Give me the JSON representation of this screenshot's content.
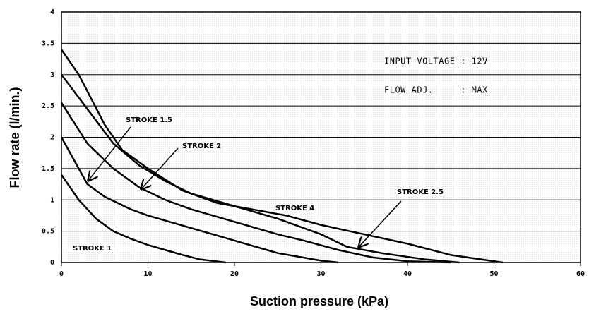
{
  "chart_data": {
    "type": "line",
    "xlabel": "Suction pressure (kPa)",
    "ylabel": "Flow rate (l/min.)",
    "annotations": [
      "INPUT VOLTAGE : 12V",
      "FLOW ADJ.     : MAX"
    ],
    "xlim": [
      0,
      60
    ],
    "xticks": [
      0,
      10,
      20,
      30,
      40,
      50,
      60
    ],
    "ylim": [
      0,
      4
    ],
    "yticks": [
      0,
      0.5,
      1,
      1.5,
      2,
      2.5,
      3,
      3.5,
      4
    ],
    "grid": true,
    "series": [
      {
        "name": "STROKE 1",
        "color": "#000000",
        "x": [
          0,
          2,
          4,
          6,
          8,
          10,
          12,
          14,
          16,
          19
        ],
        "values": [
          1.4,
          1.0,
          0.7,
          0.5,
          0.38,
          0.28,
          0.2,
          0.12,
          0.05,
          0
        ]
      },
      {
        "name": "STROKE 1.5",
        "color": "#000000",
        "x": [
          0,
          2,
          3,
          5,
          8,
          10,
          15,
          20,
          25,
          30,
          32
        ],
        "values": [
          2.0,
          1.5,
          1.25,
          1.05,
          0.85,
          0.75,
          0.55,
          0.35,
          0.15,
          0.03,
          0
        ]
      },
      {
        "name": "STROKE 2",
        "color": "#000000",
        "x": [
          0,
          3,
          6,
          9,
          12,
          15,
          20,
          25,
          28,
          32,
          36,
          40,
          45
        ],
        "values": [
          2.55,
          1.9,
          1.5,
          1.2,
          1.0,
          0.85,
          0.65,
          0.45,
          0.35,
          0.2,
          0.08,
          0.02,
          0
        ]
      },
      {
        "name": "STROKE 2.5",
        "color": "#000000",
        "x": [
          0,
          3,
          6,
          9,
          12,
          15,
          20,
          25,
          30,
          33,
          37,
          42,
          46
        ],
        "values": [
          3.0,
          2.45,
          1.9,
          1.55,
          1.3,
          1.1,
          0.9,
          0.7,
          0.45,
          0.25,
          0.15,
          0.05,
          0
        ]
      },
      {
        "name": "STROKE 4",
        "color": "#000000",
        "x": [
          0,
          2,
          5,
          7,
          10,
          14,
          18,
          22,
          26,
          30,
          35,
          40,
          45,
          51
        ],
        "values": [
          3.4,
          3.0,
          2.2,
          1.8,
          1.5,
          1.15,
          0.95,
          0.85,
          0.75,
          0.6,
          0.45,
          0.3,
          0.12,
          0
        ]
      }
    ]
  }
}
